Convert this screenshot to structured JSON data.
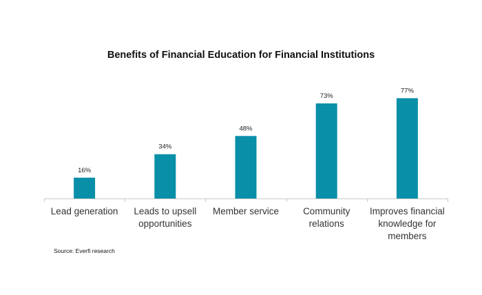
{
  "chart_data": {
    "type": "bar",
    "title": "Benefits of Financial Education for Financial Institutions",
    "categories": [
      "Lead generation",
      "Leads to upsell opportunities",
      "Member service",
      "Community relations",
      "Improves financial knowledge for members"
    ],
    "category_lines": [
      [
        "Lead generation"
      ],
      [
        "Leads to upsell",
        "opportunities"
      ],
      [
        "Member service"
      ],
      [
        "Community",
        "relations"
      ],
      [
        "Improves financial",
        "knowledge for",
        "members"
      ]
    ],
    "values": [
      16,
      34,
      48,
      73,
      77
    ],
    "data_labels": [
      "16%",
      "34%",
      "48%",
      "73%",
      "77%"
    ],
    "xlabel": "",
    "ylabel": "",
    "ylim": [
      0,
      100
    ],
    "grid": false,
    "legend": "none",
    "bar_color": "#0a8fa8",
    "source": "Source: Everfi research"
  }
}
